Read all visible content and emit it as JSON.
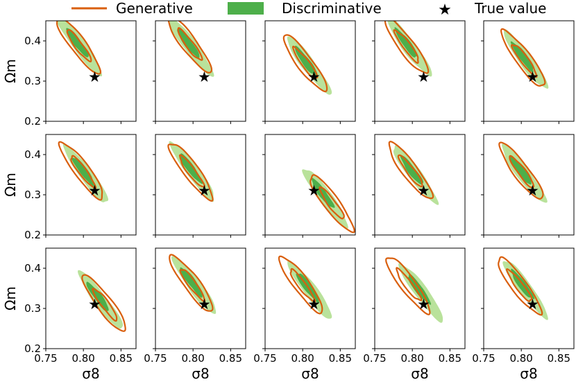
{
  "legend": {
    "generative": "Generative",
    "discriminative": "Discriminative",
    "true_value": "True value"
  },
  "colors": {
    "generative": "#d95f0e",
    "disc_outer": "#b9e29b",
    "disc_inner": "#4daf4a",
    "star": "#000000"
  },
  "chart_data": {
    "type": "contour-grid",
    "rows": 3,
    "cols": 5,
    "xlabel": "σ8",
    "ylabel": "Ωm",
    "xlim": [
      0.75,
      0.87
    ],
    "ylim": [
      0.2,
      0.45
    ],
    "xticks": [
      "0.75",
      "0.80",
      "0.85"
    ],
    "yticks": [
      "0.2",
      "0.3",
      "0.4"
    ],
    "true_value": {
      "sigma8": 0.815,
      "omega_m": 0.31
    },
    "panels": [
      {
        "gen": [
          0.793,
          0.39
        ],
        "disc": [
          0.795,
          0.388
        ]
      },
      {
        "gen": [
          0.795,
          0.392
        ],
        "disc": [
          0.797,
          0.386
        ]
      },
      {
        "gen": [
          0.803,
          0.345
        ],
        "disc": [
          0.808,
          0.34
        ]
      },
      {
        "gen": [
          0.792,
          0.388
        ],
        "disc": [
          0.796,
          0.385
        ]
      },
      {
        "gen": [
          0.803,
          0.355
        ],
        "disc": [
          0.806,
          0.352
        ]
      },
      {
        "gen": [
          0.798,
          0.36
        ],
        "disc": [
          0.804,
          0.35
        ]
      },
      {
        "gen": [
          0.797,
          0.36
        ],
        "disc": [
          0.8,
          0.358
        ]
      },
      {
        "gen": [
          0.838,
          0.28
        ],
        "disc": [
          0.83,
          0.295
        ]
      },
      {
        "gen": [
          0.797,
          0.36
        ],
        "disc": [
          0.803,
          0.352
        ]
      },
      {
        "gen": [
          0.8,
          0.358
        ],
        "disc": [
          0.803,
          0.352
        ]
      },
      {
        "gen": [
          0.828,
          0.312
        ],
        "disc": [
          0.823,
          0.32
        ]
      },
      {
        "gen": [
          0.798,
          0.362
        ],
        "disc": [
          0.802,
          0.357
        ]
      },
      {
        "gen": [
          0.798,
          0.36
        ],
        "disc": [
          0.81,
          0.345
        ]
      },
      {
        "gen": [
          0.794,
          0.36
        ],
        "disc": [
          0.812,
          0.34
        ]
      },
      {
        "gen": [
          0.797,
          0.357
        ],
        "disc": [
          0.805,
          0.35
        ]
      }
    ]
  }
}
